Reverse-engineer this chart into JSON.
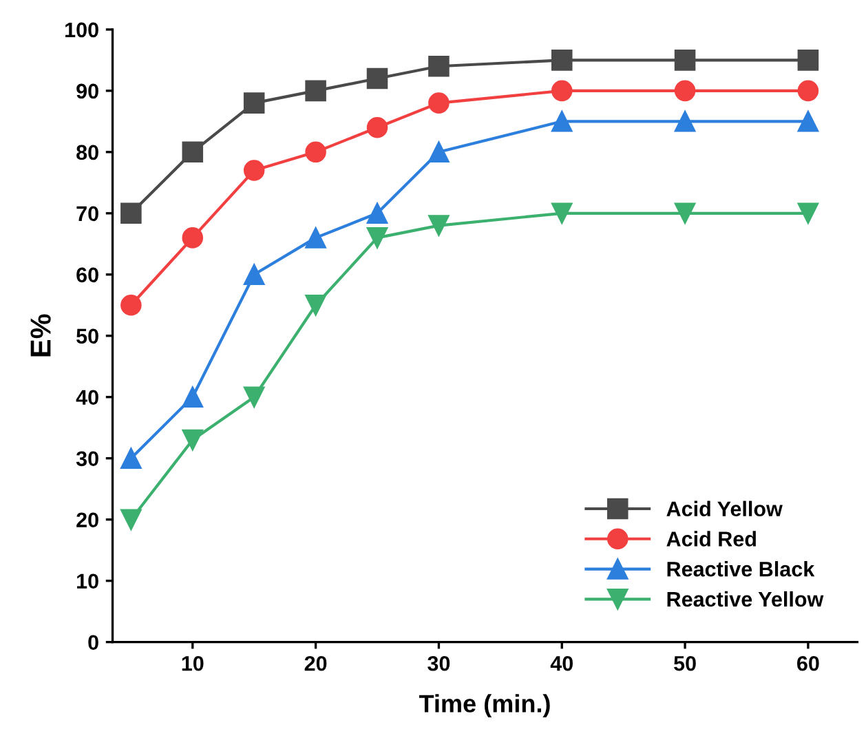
{
  "chart_data": {
    "type": "line",
    "xlabel": "Time (min.)",
    "ylabel": "E%",
    "x": [
      5,
      10,
      15,
      20,
      25,
      30,
      40,
      50,
      60
    ],
    "series": [
      {
        "name": "Acid Yellow",
        "color": "#4a4a4a",
        "marker": "square",
        "values": [
          70,
          80,
          88,
          90,
          92,
          94,
          95,
          95,
          95
        ]
      },
      {
        "name": "Acid Red",
        "color": "#f23f3f",
        "marker": "circle",
        "values": [
          55,
          66,
          77,
          80,
          84,
          88,
          90,
          90,
          90
        ]
      },
      {
        "name": "Reactive Black",
        "color": "#2c7fdc",
        "marker": "triangle",
        "values": [
          30,
          40,
          60,
          66,
          70,
          80,
          85,
          85,
          85
        ]
      },
      {
        "name": "Reactive Yellow",
        "color": "#3cb06e",
        "marker": "triangle_down",
        "values": [
          20,
          33,
          40,
          55,
          66,
          68,
          70,
          70,
          70
        ]
      }
    ],
    "xlim": [
      3.5,
      64
    ],
    "xticks": [
      10,
      20,
      30,
      40,
      50,
      60
    ],
    "ylim": [
      0,
      100
    ],
    "yticks": [
      0,
      10,
      20,
      30,
      40,
      50,
      60,
      70,
      80,
      90,
      100
    ],
    "grid": false,
    "legend": "bottom right",
    "line_style": "solid"
  }
}
